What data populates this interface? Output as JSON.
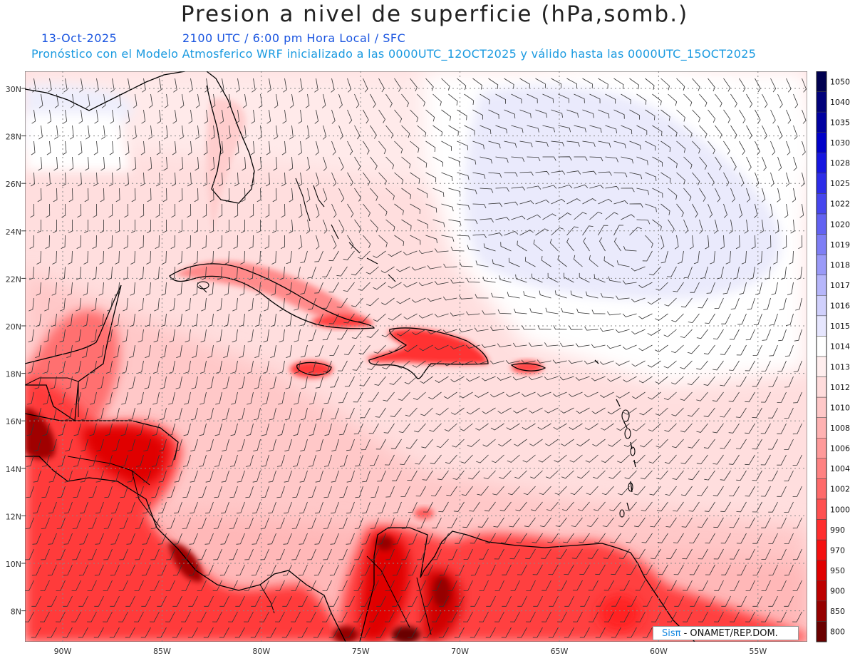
{
  "header": {
    "title": "Presion a nivel de superficie (hPa,somb.)",
    "date": "13-Oct-2025",
    "time": "2100 UTC / 6:00 pm Hora Local / SFC",
    "model_line": "Pronóstico con el Modelo Atmosferico WRF inicializado a las 0000UTC_12OCT2025 y válido hasta las  0000UTC_15OCT2025"
  },
  "axes": {
    "lat_labels": [
      "30N",
      "28N",
      "26N",
      "24N",
      "22N",
      "20N",
      "18N",
      "16N",
      "14N",
      "12N",
      "10N",
      "8N"
    ],
    "lon_labels": [
      "90W",
      "85W",
      "80W",
      "75W",
      "70W",
      "65W",
      "60W",
      "55W"
    ]
  },
  "colorbar": {
    "levels": [
      "1050",
      "1040",
      "1035",
      "1030",
      "1028",
      "1025",
      "1022",
      "1020",
      "1019",
      "1018",
      "1017",
      "1016",
      "1015",
      "1014",
      "1013",
      "1012",
      "1010",
      "1008",
      "1006",
      "1004",
      "1002",
      "1000",
      "990",
      "970",
      "950",
      "900",
      "850",
      "800"
    ],
    "colors": [
      "#000050",
      "#00007a",
      "#0000a0",
      "#0000c8",
      "#1515e0",
      "#2c2ce8",
      "#4646ee",
      "#6262f2",
      "#7e7ef5",
      "#9a9af8",
      "#b6b6fa",
      "#d0d0fc",
      "#e6e6fe",
      "#ffffff",
      "#ffeeee",
      "#ffdcdc",
      "#ffc8c8",
      "#ffb2b2",
      "#ff9a9a",
      "#ff8282",
      "#ff6a6a",
      "#ff5050",
      "#ff2e2e",
      "#f41010",
      "#e00000",
      "#bd0000",
      "#960000",
      "#6a0000"
    ]
  },
  "credit": {
    "brand": "Sisπ",
    "text": " - ONAMET/REP.DOM."
  }
}
